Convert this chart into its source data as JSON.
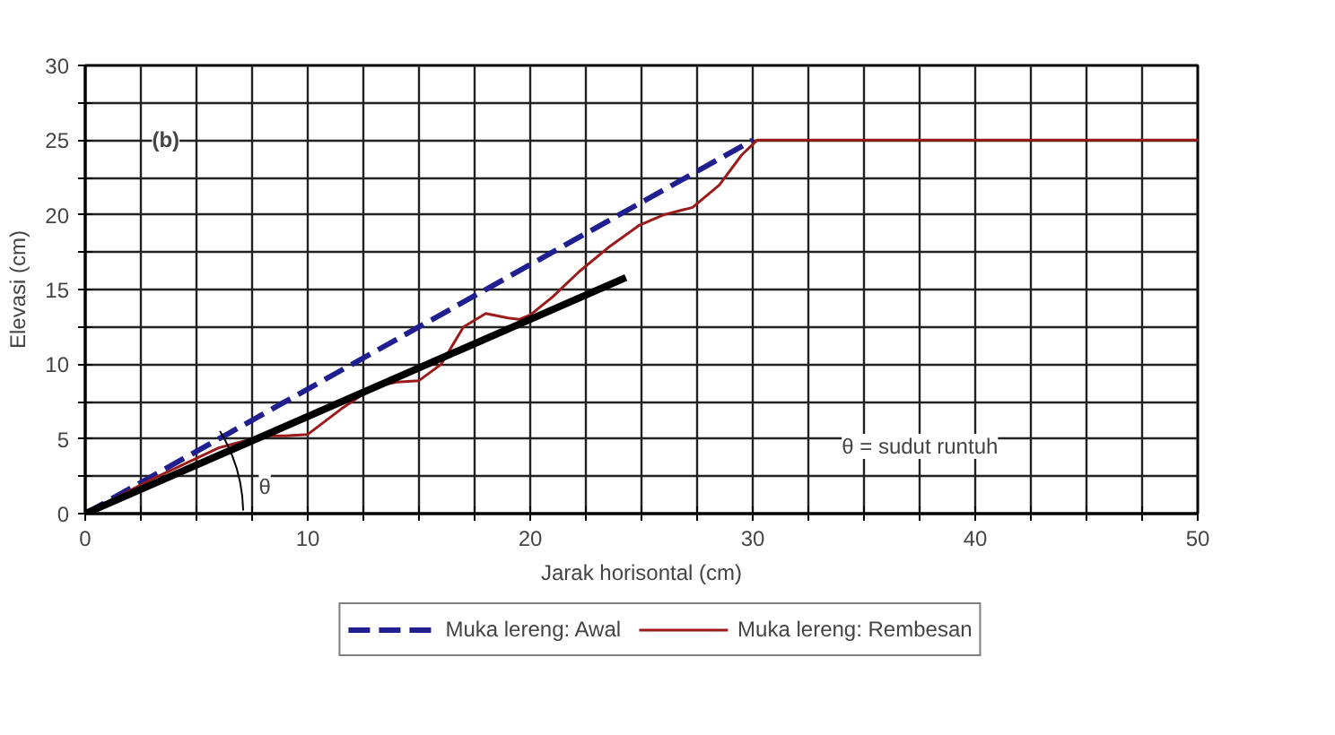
{
  "chart_data": {
    "type": "line",
    "xlabel": "Jarak horisontal (cm)",
    "ylabel": "Elevasi (cm)",
    "xlim": [
      0,
      50
    ],
    "ylim": [
      0,
      30
    ],
    "xticks": [
      0,
      {
        "value": 2.5,
        "label": null
      },
      {
        "value": 5,
        "label": null
      },
      {
        "value": 7.5,
        "label": null
      },
      10,
      {
        "value": 12.5,
        "label": null
      },
      {
        "value": 15,
        "label": null
      },
      {
        "value": 17.5,
        "label": null
      },
      20,
      {
        "value": 22.5,
        "label": null
      },
      {
        "value": 25,
        "label": null
      },
      {
        "value": 27.5,
        "label": null
      },
      30,
      {
        "value": 32.5,
        "label": null
      },
      {
        "value": 35,
        "label": null
      },
      {
        "value": 37.5,
        "label": null
      },
      40,
      {
        "value": 42.5,
        "label": null
      },
      {
        "value": 45,
        "label": null
      },
      {
        "value": 47.5,
        "label": null
      },
      50
    ],
    "yticks": [
      0,
      {
        "value": 2.5,
        "label": null
      },
      5,
      {
        "value": 7.5,
        "label": null
      },
      10,
      {
        "value": 12.5,
        "label": null
      },
      15,
      {
        "value": 17.5,
        "label": null
      },
      20,
      {
        "value": 22.5,
        "label": null
      },
      25,
      {
        "value": 27.5,
        "label": null
      },
      30
    ],
    "grid": true,
    "legend": "bottom",
    "series": [
      {
        "name": "Muka lereng: Awal",
        "color": "#1f1f8f",
        "line_style": "dashed",
        "x": [
          0,
          30
        ],
        "values": [
          0,
          25
        ]
      },
      {
        "name": "Muka lereng: Rembesan",
        "color": "#9b1b1b",
        "line_style": "solid",
        "x": [
          0,
          3,
          6,
          8,
          9,
          10,
          11.5,
          13,
          14,
          15,
          16,
          17,
          18,
          19,
          19.5,
          20,
          21,
          22.2,
          23.5,
          24.9,
          26,
          27.3,
          28.5,
          29.5,
          30.2,
          30.8,
          40,
          50
        ],
        "values": [
          0,
          2.3,
          4.4,
          5.2,
          5.2,
          5.3,
          7,
          8.5,
          8.8,
          8.9,
          10,
          12.5,
          13.4,
          13.1,
          13,
          13.3,
          14.5,
          16.2,
          17.8,
          19.3,
          20,
          20.5,
          22,
          24,
          25,
          25,
          25,
          25
        ]
      },
      {
        "color": "#000000",
        "line_style": "solid",
        "x": [
          0,
          24.3
        ],
        "values": [
          0,
          15.8
        ]
      }
    ],
    "annotations": [
      "(b)",
      {
        "text": "θ",
        "x": 7,
        "y": 4.55
      },
      "θ = sudut runtuh"
    ]
  }
}
